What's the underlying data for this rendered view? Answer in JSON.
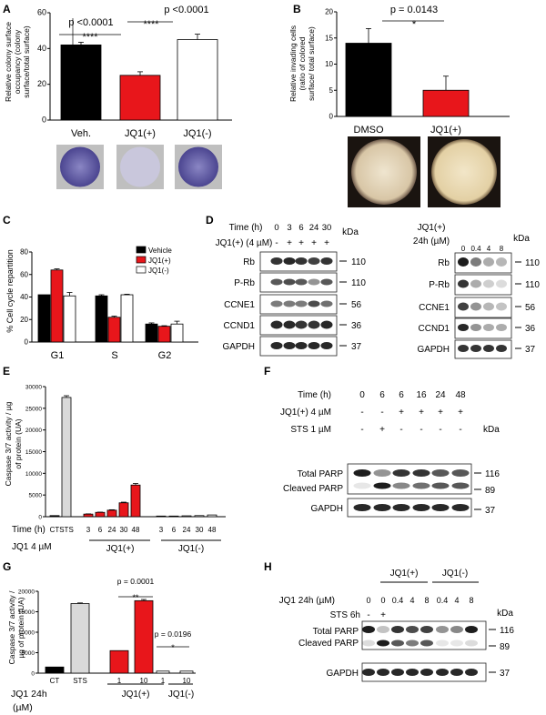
{
  "panels": {
    "A": {
      "letter": "A",
      "ylabel": "Relative colony surface occupancy (colony surface/total surface)",
      "ylabel_lines": [
        "Relative colony surface",
        "occupancy (colony",
        "surface/total surface)"
      ],
      "pvals": [
        "p <0.0001",
        "p <0.0001"
      ],
      "stars": [
        "****",
        "****"
      ]
    },
    "B": {
      "letter": "B",
      "ylabel_lines": [
        "Relative invading cells",
        "(ratio of colored",
        "surface/ total surface)"
      ],
      "pval": "p = 0.0143",
      "star": "*"
    },
    "C": {
      "letter": "C",
      "ylabel": "% Cell cycle repartition"
    },
    "D": {
      "letter": "D",
      "time_label": "Time (h)",
      "times": [
        "0",
        "3",
        "6",
        "24",
        "30"
      ],
      "treat_label": "JQ1(+) (4 µM)",
      "treat_marks": [
        "-",
        "+",
        "+",
        "+",
        "+"
      ],
      "rows": [
        "Rb",
        "P-Rb",
        "CCNE1",
        "CCND1",
        "GAPDH"
      ],
      "kda_title": "kDa",
      "kdas": [
        "110",
        "110",
        "56",
        "36",
        "37"
      ],
      "right_title_1": "JQ1(+)",
      "right_title_2": "24h (µM)",
      "doses": [
        "0",
        "0.4",
        "4",
        "8"
      ],
      "right_kda_title": "kDa",
      "right_kdas": [
        "110",
        "110",
        "56",
        "36",
        "37"
      ]
    },
    "E": {
      "letter": "E",
      "ylabel_lines": [
        "Caspase 3/7 activity / µg",
        "of protein (UA)"
      ],
      "time_label": "Time (h)",
      "treat_label": "JQ1 4 µM",
      "time_ticks": [
        "CT",
        "STS",
        "3",
        "6",
        "24",
        "30",
        "48",
        "3",
        "6",
        "24",
        "30",
        "48"
      ],
      "group_labels": [
        "JQ1(+)",
        "JQ1(-)"
      ]
    },
    "F": {
      "letter": "F",
      "time_label": "Time (h)",
      "times": [
        "0",
        "6",
        "6",
        "16",
        "24",
        "48"
      ],
      "jq1_label": "JQ1(+) 4 µM",
      "jq1_marks": [
        "-",
        "-",
        "+",
        "+",
        "+",
        "+"
      ],
      "sts_label": "STS 1 µM",
      "sts_marks": [
        "-",
        "+",
        "-",
        "-",
        "-",
        "-"
      ],
      "kda_title": "kDa",
      "rows": [
        "Total PARP",
        "Cleaved PARP",
        "GAPDH"
      ],
      "kdas": [
        "116",
        "89",
        "37"
      ]
    },
    "G": {
      "letter": "G",
      "ylabel_lines": [
        "Caspase 3/7 activity /",
        "µg of protein (UA)"
      ],
      "pvals": [
        "p = 0.0001",
        "p = 0.0196"
      ],
      "stars": [
        "**",
        "*"
      ],
      "x_ticks": [
        "CT",
        "STS",
        "1",
        "10",
        "1",
        "10"
      ],
      "treat_label_1": "JQ1 24h",
      "treat_label_2": "(µM)",
      "group_labels": [
        "JQ1(+)",
        "JQ1(-)"
      ]
    },
    "H": {
      "letter": "H",
      "group_labels": [
        "JQ1(+)",
        "JQ1(-)"
      ],
      "dose_label": "JQ1 24h (µM)",
      "doses": [
        "0",
        "0",
        "0.4",
        "4",
        "8",
        "0.4",
        "4",
        "8"
      ],
      "sts_label": "STS 6h",
      "sts_marks": [
        "-",
        "+"
      ],
      "kda_title": "kDa",
      "rows": [
        "Total PARP",
        "Cleaved PARP",
        "GAPDH"
      ],
      "kdas": [
        "116",
        "89",
        "37"
      ]
    }
  },
  "colors": {
    "black": "#000000",
    "red": "#e8161b",
    "white": "#ffffff",
    "grey": "#d9d9d9"
  },
  "chart_data": [
    {
      "panel": "A",
      "type": "bar",
      "categories": [
        "Veh.",
        "JQ1(+)",
        "JQ1(-)"
      ],
      "values": [
        42,
        25,
        45
      ],
      "errors": [
        1.5,
        2,
        3
      ],
      "ylim": [
        0,
        60
      ],
      "yticks": [
        "0",
        "20",
        "40",
        "60"
      ],
      "colors": [
        "#000000",
        "#e8161b",
        "#ffffff"
      ]
    },
    {
      "panel": "B",
      "type": "bar",
      "categories": [
        "DMSO",
        "JQ1(+)"
      ],
      "values": [
        14,
        5
      ],
      "errors": [
        2.8,
        2.7
      ],
      "ylim": [
        0,
        20
      ],
      "yticks": [
        "0",
        "5",
        "10",
        "15",
        "20"
      ],
      "colors": [
        "#000000",
        "#e8161b"
      ]
    },
    {
      "panel": "C",
      "type": "bar",
      "categories": [
        "G1",
        "S",
        "G2"
      ],
      "series": [
        {
          "name": "Vehicle",
          "values": [
            42,
            41,
            16
          ],
          "errors": [
            0,
            1,
            1
          ],
          "color": "#000000"
        },
        {
          "name": "JQ1(+)",
          "values": [
            64,
            22,
            14
          ],
          "errors": [
            1,
            1,
            0.5
          ],
          "color": "#e8161b"
        },
        {
          "name": "JQ1(-)",
          "values": [
            41,
            42,
            16
          ],
          "errors": [
            3,
            0.5,
            2.5
          ],
          "color": "#ffffff"
        }
      ],
      "ylim": [
        0,
        80
      ],
      "yticks": [
        "0",
        "20",
        "40",
        "60",
        "80"
      ]
    },
    {
      "panel": "E",
      "type": "bar",
      "categories": [
        "CT",
        "STS",
        "3",
        "6",
        "24",
        "30",
        "48",
        "3",
        "6",
        "24",
        "30",
        "48"
      ],
      "values": [
        250,
        27500,
        600,
        1000,
        1500,
        3200,
        7300,
        150,
        150,
        200,
        250,
        400
      ],
      "errors": [
        0,
        400,
        50,
        50,
        100,
        150,
        350,
        0,
        0,
        0,
        0,
        0
      ],
      "colors": [
        "#000000",
        "#d9d9d9",
        "#e8161b",
        "#e8161b",
        "#e8161b",
        "#e8161b",
        "#e8161b",
        "#ffffff",
        "#ffffff",
        "#ffffff",
        "#ffffff",
        "#ffffff"
      ],
      "ylim": [
        0,
        30000
      ],
      "yticks": [
        "0",
        "5000",
        "10000",
        "15000",
        "20000",
        "25000",
        "30000"
      ]
    },
    {
      "panel": "G",
      "type": "bar",
      "categories": [
        "CT",
        "STS",
        "1",
        "10",
        "1",
        "10"
      ],
      "values": [
        1500,
        17000,
        5500,
        17700,
        500,
        500
      ],
      "errors": [
        0,
        150,
        0,
        300,
        0,
        0
      ],
      "colors": [
        "#000000",
        "#d9d9d9",
        "#e8161b",
        "#e8161b",
        "#ffffff",
        "#ffffff"
      ],
      "ylim": [
        0,
        20000
      ],
      "yticks": [
        "0",
        "5000",
        "10000",
        "15000",
        "20000"
      ]
    }
  ]
}
